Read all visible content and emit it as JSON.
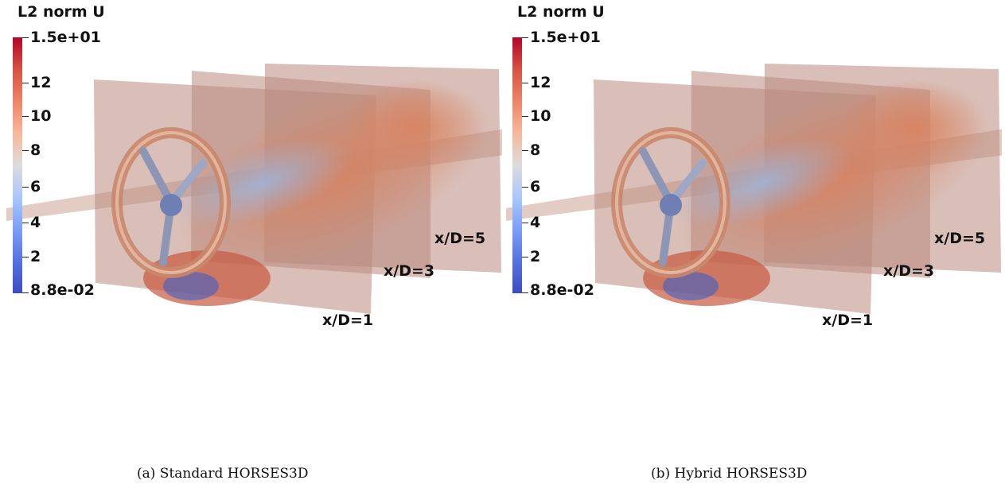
{
  "panels": [
    {
      "colorbar": {
        "title": "L2 norm U",
        "labels": [
          "1.5e+01",
          "12",
          "10",
          "8",
          "6",
          "4",
          "2",
          "8.8e-02"
        ],
        "colormap": [
          "#b40426",
          "#d65244",
          "#ee8468",
          "#f7b89c",
          "#dddcdc",
          "#aac7fd",
          "#7b9ff9",
          "#5572df",
          "#3b4cc0"
        ]
      },
      "slice_labels": [
        "x/D=5",
        "x/D=3",
        "x/D=1"
      ],
      "caption": "(a) Standard HORSES3D"
    },
    {
      "colorbar": {
        "title": "L2 norm U",
        "labels": [
          "1.5e+01",
          "12",
          "10",
          "8",
          "6",
          "4",
          "2",
          "8.8e-02"
        ],
        "colormap": [
          "#b40426",
          "#d65244",
          "#ee8468",
          "#f7b89c",
          "#dddcdc",
          "#aac7fd",
          "#7b9ff9",
          "#5572df",
          "#3b4cc0"
        ]
      },
      "slice_labels": [
        "x/D=5",
        "x/D=3",
        "x/D=1"
      ],
      "caption": "(b) Hybrid HORSES3D"
    }
  ]
}
